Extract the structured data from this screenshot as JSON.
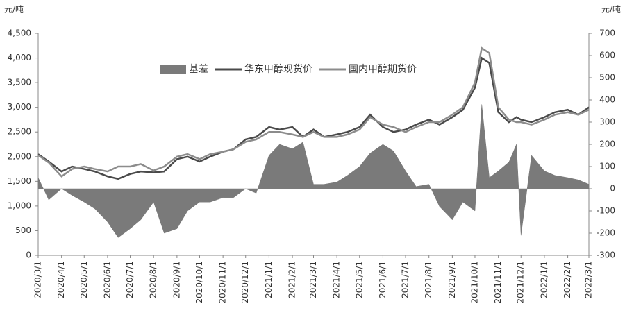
{
  "chart_data": {
    "type": "line",
    "y_unit": "元/吨",
    "y2_unit": "元/吨",
    "x": [
      "2020/3/1",
      "2020/3/15",
      "2020/4/1",
      "2020/4/15",
      "2020/5/1",
      "2020/5/15",
      "2020/6/1",
      "2020/6/15",
      "2020/7/1",
      "2020/7/15",
      "2020/8/1",
      "2020/8/15",
      "2020/9/1",
      "2020/9/15",
      "2020/10/1",
      "2020/10/15",
      "2020/11/1",
      "2020/11/15",
      "2020/12/1",
      "2020/12/15",
      "2021/1/1",
      "2021/1/15",
      "2021/2/1",
      "2021/2/15",
      "2021/3/1",
      "2021/3/15",
      "2021/4/1",
      "2021/4/15",
      "2021/5/1",
      "2021/5/15",
      "2021/6/1",
      "2021/6/15",
      "2021/7/1",
      "2021/7/15",
      "2021/8/1",
      "2021/8/15",
      "2021/9/1",
      "2021/9/15",
      "2021/10/1",
      "2021/10/10",
      "2021/10/20",
      "2021/11/1",
      "2021/11/15",
      "2021/11/25",
      "2021/12/1",
      "2021/12/15",
      "2022/1/1",
      "2022/1/15",
      "2022/2/1",
      "2022/2/15",
      "2022/3/1"
    ],
    "series": [
      {
        "name": "基差",
        "color": "#7a7a7a",
        "axis": "y2",
        "area": true,
        "values": [
          50,
          -50,
          0,
          -30,
          -60,
          -90,
          -150,
          -220,
          -180,
          -140,
          -60,
          -200,
          -180,
          -100,
          -60,
          -60,
          -40,
          -40,
          0,
          -20,
          150,
          200,
          180,
          210,
          20,
          20,
          30,
          60,
          100,
          160,
          200,
          170,
          80,
          10,
          20,
          -80,
          -140,
          -60,
          -100,
          380,
          50,
          80,
          120,
          200,
          -210,
          150,
          80,
          60,
          50,
          40,
          20
        ]
      },
      {
        "name": "华东甲醇现货价",
        "color": "#4a4a4a",
        "values": [
          2050,
          1900,
          1700,
          1800,
          1750,
          1700,
          1600,
          1550,
          1650,
          1700,
          1680,
          1700,
          1950,
          2000,
          1900,
          2000,
          2100,
          2150,
          2350,
          2400,
          2600,
          2550,
          2600,
          2400,
          2550,
          2400,
          2450,
          2500,
          2600,
          2850,
          2600,
          2500,
          2550,
          2650,
          2750,
          2650,
          2800,
          2950,
          3400,
          4000,
          3900,
          2900,
          2700,
          2800,
          2750,
          2700,
          2800,
          2900,
          2950,
          2850,
          3000
        ]
      },
      {
        "name": "国内甲醇期货价",
        "color": "#8c8c8c",
        "values": [
          2030,
          1880,
          1600,
          1750,
          1800,
          1750,
          1700,
          1800,
          1800,
          1850,
          1720,
          1800,
          2000,
          2050,
          1950,
          2050,
          2100,
          2150,
          2300,
          2350,
          2500,
          2500,
          2450,
          2400,
          2500,
          2400,
          2400,
          2450,
          2550,
          2800,
          2650,
          2600,
          2500,
          2600,
          2700,
          2700,
          2850,
          3000,
          3500,
          4200,
          4100,
          3000,
          2750,
          2700,
          2700,
          2650,
          2750,
          2850,
          2900,
          2850,
          2950
        ]
      }
    ],
    "xlim": [
      "2020/3/1",
      "2022/3/1"
    ],
    "xticks": [
      "2020/3/1",
      "2020/4/1",
      "2020/5/1",
      "2020/6/1",
      "2020/7/1",
      "2020/8/1",
      "2020/9/1",
      "2020/10/1",
      "2020/11/1",
      "2020/12/1",
      "2021/1/1",
      "2021/2/1",
      "2021/3/1",
      "2021/4/1",
      "2021/5/1",
      "2021/6/1",
      "2021/7/1",
      "2021/8/1",
      "2021/9/1",
      "2021/10/1",
      "2021/11/1",
      "2021/12/1",
      "2022/1/1",
      "2022/2/1",
      "2022/3/1"
    ],
    "ylim": [
      0,
      4500
    ],
    "yticks": [
      0,
      500,
      {
        "value": 1000,
        "label": "1,000"
      },
      {
        "value": 1500,
        "label": "1,500"
      },
      {
        "value": 2000,
        "label": "2,000"
      },
      {
        "value": 2500,
        "label": "2,500"
      },
      {
        "value": 3000,
        "label": "3,000"
      },
      {
        "value": 3500,
        "label": "3,500"
      },
      {
        "value": 4000,
        "label": "4,000"
      },
      {
        "value": 4500,
        "label": "4,500"
      }
    ],
    "y2lim": [
      -300,
      700
    ],
    "y2ticks": [
      -300,
      -200,
      -100,
      0,
      100,
      200,
      300,
      400,
      500,
      600,
      700
    ],
    "legend": "top"
  }
}
